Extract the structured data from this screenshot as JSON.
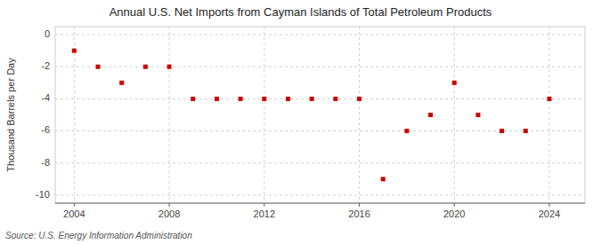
{
  "chart_data": {
    "type": "scatter",
    "title": "Annual U.S. Net Imports from Cayman Islands of Total Petroleum Products",
    "ylabel": "Thousand Barrels per Day",
    "source": "Source: U.S. Energy Information Administration",
    "x": [
      2004,
      2005,
      2006,
      2007,
      2008,
      2009,
      2010,
      2011,
      2012,
      2013,
      2014,
      2015,
      2016,
      2017,
      2018,
      2019,
      2020,
      2021,
      2022,
      2023,
      2024
    ],
    "values": [
      -1.0,
      -2.0,
      -3.0,
      -2.0,
      -2.0,
      -4.0,
      -4.0,
      -4.0,
      -4.0,
      -4.0,
      -4.0,
      -4.0,
      -4.0,
      -9.0,
      -6.0,
      -5.0,
      -3.0,
      -5.0,
      -6.0,
      -6.0,
      -4.0
    ],
    "color": "#cc0000",
    "marker": "square",
    "xlim": [
      2003.2,
      2025.5
    ],
    "ylim": [
      -10.5,
      0.5
    ],
    "xticks": [
      2004,
      2008,
      2012,
      2016,
      2020,
      2024
    ],
    "yticks": [
      0,
      -2,
      -4,
      -6,
      -8,
      -10
    ],
    "grid": true
  }
}
